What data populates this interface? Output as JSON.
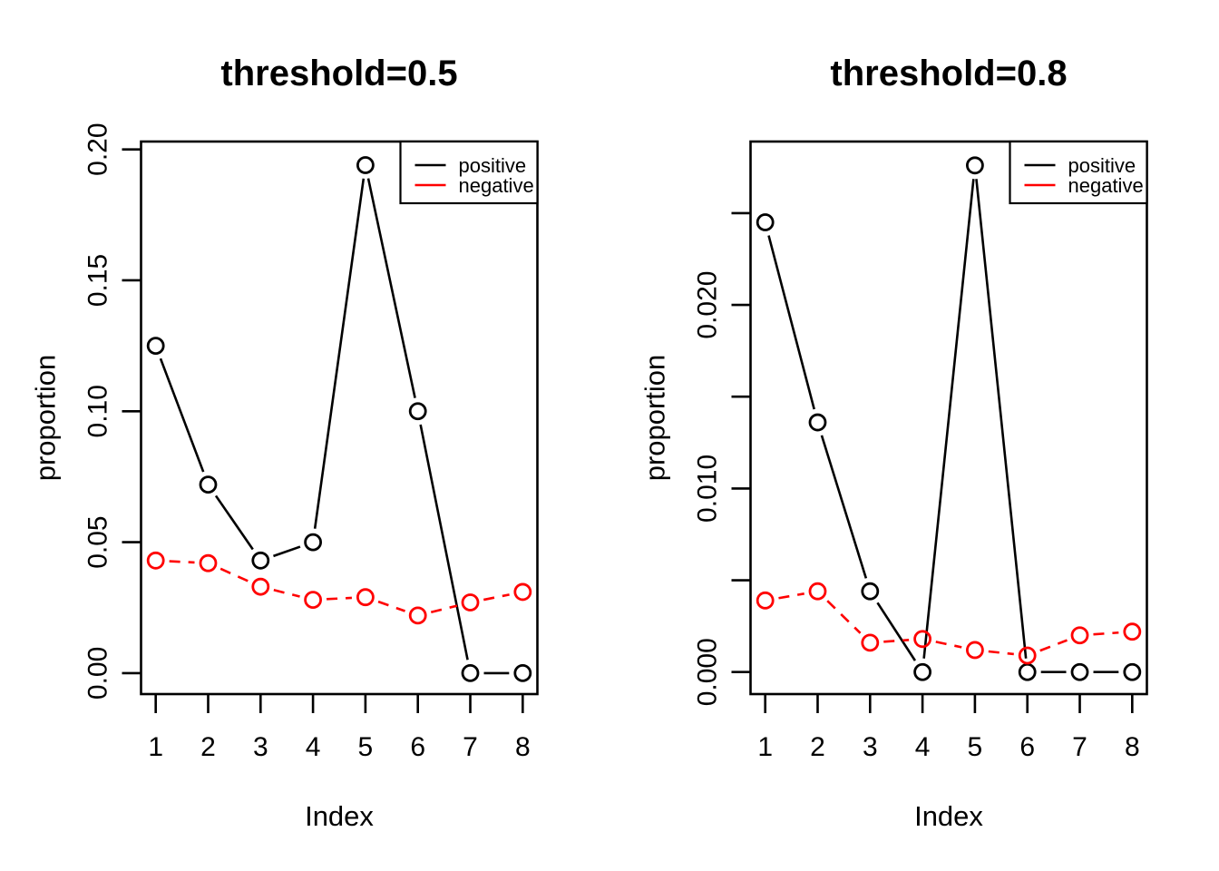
{
  "figure": {
    "background": "#FFFFFF",
    "text_color": "#000000"
  },
  "chart_data": [
    {
      "type": "line",
      "title": "threshold=0.5",
      "xlabel": "Index",
      "ylabel": "proportion",
      "x": [
        1,
        2,
        3,
        4,
        5,
        6,
        7,
        8
      ],
      "series": [
        {
          "name": "positive",
          "color": "#000000",
          "linestyle": "solid",
          "marker": "open-circle",
          "values": [
            0.125,
            0.072,
            0.043,
            0.05,
            0.194,
            0.1,
            0.0,
            0.0
          ]
        },
        {
          "name": "negative",
          "color": "#FF0000",
          "linestyle": "dashed",
          "marker": "open-circle",
          "values": [
            0.043,
            0.042,
            0.033,
            0.028,
            0.029,
            0.022,
            0.027,
            0.031
          ]
        }
      ],
      "xlim": [
        0.72,
        8.28
      ],
      "ylim": [
        -0.008,
        0.203
      ],
      "xticks": {
        "values": [
          1,
          2,
          3,
          4,
          5,
          6,
          7,
          8
        ],
        "labels": [
          "1",
          "2",
          "3",
          "4",
          "5",
          "6",
          "7",
          "8"
        ]
      },
      "yticks": {
        "values": [
          0.0,
          0.05,
          0.1,
          0.15,
          0.2
        ],
        "labels": [
          "0.00",
          "0.05",
          "0.10",
          "0.15",
          "0.20"
        ]
      },
      "legend": {
        "position": "topright",
        "entries": [
          {
            "label": "positive",
            "color": "#000000"
          },
          {
            "label": "negative",
            "color": "#FF0000"
          }
        ]
      },
      "grid": false
    },
    {
      "type": "line",
      "title": "threshold=0.8",
      "xlabel": "Index",
      "ylabel": "proportion",
      "x": [
        1,
        2,
        3,
        4,
        5,
        6,
        7,
        8
      ],
      "series": [
        {
          "name": "positive",
          "color": "#000000",
          "linestyle": "solid",
          "marker": "open-circle",
          "values": [
            0.0245,
            0.0136,
            0.0044,
            0.0,
            0.0276,
            0.0,
            0.0,
            0.0
          ]
        },
        {
          "name": "negative",
          "color": "#FF0000",
          "linestyle": "dashed",
          "marker": "open-circle",
          "values": [
            0.0039,
            0.0044,
            0.0016,
            0.0018,
            0.0012,
            0.0009,
            0.002,
            0.0022
          ]
        }
      ],
      "xlim": [
        0.72,
        8.28
      ],
      "ylim": [
        -0.0012,
        0.0289
      ],
      "xticks": {
        "values": [
          1,
          2,
          3,
          4,
          5,
          6,
          7,
          8
        ],
        "labels": [
          "1",
          "2",
          "3",
          "4",
          "5",
          "6",
          "7",
          "8"
        ]
      },
      "yticks": {
        "values": [
          0.0,
          0.005,
          0.01,
          0.015,
          0.02,
          0.025
        ],
        "labels": [
          "0.000",
          "",
          "0.010",
          "",
          "0.020",
          ""
        ]
      },
      "legend": {
        "position": "topright",
        "entries": [
          {
            "label": "positive",
            "color": "#000000"
          },
          {
            "label": "negative",
            "color": "#FF0000"
          }
        ]
      },
      "grid": false
    }
  ]
}
